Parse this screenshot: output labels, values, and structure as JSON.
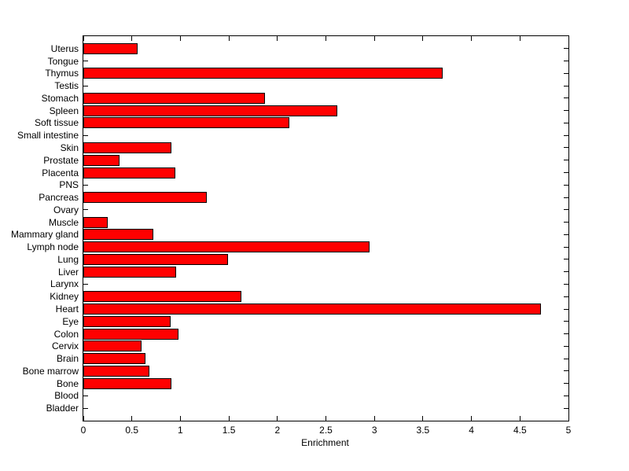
{
  "figure": {
    "background_color": "#ffffff",
    "text_color": "#000000"
  },
  "chart_data": {
    "type": "bar",
    "orientation": "horizontal",
    "title": "",
    "xlabel": "Enrichment",
    "ylabel": "",
    "categories": [
      "Uterus",
      "Tongue",
      "Thymus",
      "Testis",
      "Stomach",
      "Spleen",
      "Soft tissue",
      "Small intestine",
      "Skin",
      "Prostate",
      "Placenta",
      "PNS",
      "Pancreas",
      "Ovary",
      "Muscle",
      "Mammary gland",
      "Lymph node",
      "Lung",
      "Liver",
      "Larynx",
      "Kidney",
      "Heart",
      "Eye",
      "Colon",
      "Cervix",
      "Brain",
      "Bone marrow",
      "Bone",
      "Blood",
      "Bladder"
    ],
    "values": [
      0.56,
      0,
      3.7,
      0,
      1.87,
      2.62,
      2.12,
      0,
      0.91,
      0.37,
      0.95,
      0,
      1.27,
      0,
      0.25,
      0.72,
      2.95,
      1.49,
      0.96,
      0,
      1.63,
      4.72,
      0.9,
      0.98,
      0.6,
      0.64,
      0.68,
      0.91,
      0,
      0
    ],
    "xlim": [
      0,
      5
    ],
    "xticks": [
      0,
      0.5,
      1,
      1.5,
      2,
      2.5,
      3,
      3.5,
      4,
      4.5,
      5
    ],
    "xtick_labels": [
      "0",
      "0.5",
      "1",
      "1.5",
      "2",
      "2.5",
      "3",
      "3.5",
      "4",
      "4.5",
      "5"
    ],
    "bar_color": "#ff0000",
    "bar_edge_color": "#000000",
    "grid": false,
    "legend": null,
    "box": true,
    "tick_direction": "in"
  }
}
